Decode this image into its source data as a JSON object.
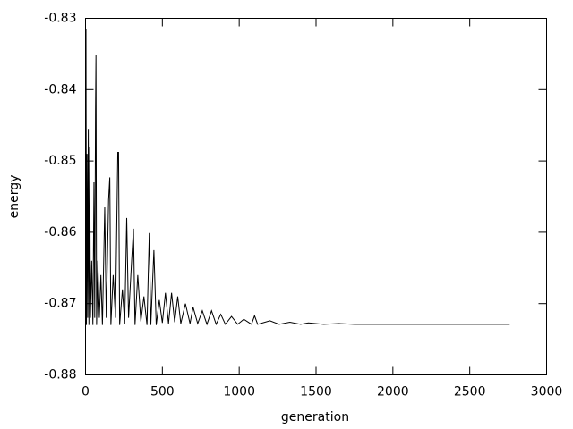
{
  "chart_data": {
    "type": "line",
    "x_label": "generation",
    "y_label": "energy",
    "x": [
      0,
      3,
      6,
      10,
      14,
      18,
      22,
      27,
      32,
      40,
      48,
      55,
      60,
      65,
      68,
      72,
      80,
      90,
      100,
      110,
      125,
      135,
      150,
      158,
      165,
      180,
      195,
      210,
      215,
      222,
      240,
      255,
      268,
      280,
      300,
      312,
      322,
      340,
      360,
      380,
      400,
      415,
      425,
      445,
      460,
      480,
      500,
      520,
      540,
      560,
      580,
      600,
      620,
      650,
      680,
      700,
      730,
      760,
      790,
      820,
      850,
      880,
      910,
      950,
      990,
      1030,
      1080,
      1100,
      1120,
      1200,
      1260,
      1330,
      1400,
      1450,
      1550,
      1650,
      1750,
      2000,
      2300,
      2760
    ],
    "values": [
      -0.8729,
      -0.8315,
      -0.873,
      -0.849,
      -0.872,
      -0.8455,
      -0.873,
      -0.848,
      -0.872,
      -0.864,
      -0.873,
      -0.853,
      -0.872,
      -0.843,
      -0.8352,
      -0.873,
      -0.864,
      -0.872,
      -0.866,
      -0.873,
      -0.8565,
      -0.872,
      -0.8555,
      -0.8523,
      -0.873,
      -0.866,
      -0.872,
      -0.8488,
      -0.8488,
      -0.873,
      -0.868,
      -0.8728,
      -0.858,
      -0.872,
      -0.864,
      -0.8595,
      -0.873,
      -0.866,
      -0.8725,
      -0.869,
      -0.873,
      -0.8601,
      -0.873,
      -0.8625,
      -0.873,
      -0.8695,
      -0.8727,
      -0.8685,
      -0.8728,
      -0.8685,
      -0.8726,
      -0.869,
      -0.8728,
      -0.87,
      -0.8728,
      -0.8705,
      -0.8728,
      -0.871,
      -0.8729,
      -0.871,
      -0.8729,
      -0.8715,
      -0.8729,
      -0.8718,
      -0.8729,
      -0.8722,
      -0.8729,
      -0.8717,
      -0.8729,
      -0.8724,
      -0.8729,
      -0.8726,
      -0.8729,
      -0.8727,
      -0.8729,
      -0.8728,
      -0.8729,
      -0.8729,
      -0.8729,
      -0.8729
    ],
    "color": "#000000",
    "xlim": [
      0,
      3000
    ],
    "xticks": [
      0,
      500,
      1000,
      1500,
      2000,
      2500,
      3000
    ],
    "ylim": [
      -0.88,
      -0.83
    ],
    "yticks": [
      -0.88,
      -0.87,
      -0.86,
      -0.85,
      -0.84,
      -0.83
    ]
  }
}
